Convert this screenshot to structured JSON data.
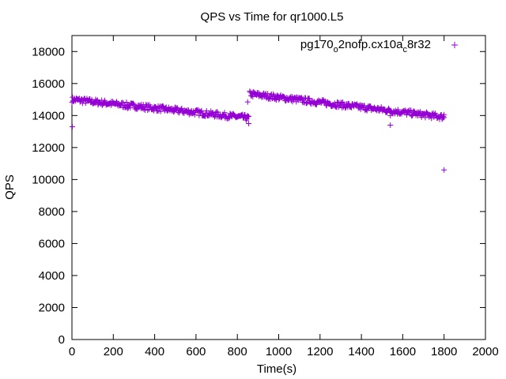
{
  "chart_data": {
    "type": "scatter",
    "title": "QPS vs Time for qr1000.L5",
    "xlabel": "Time(s)",
    "ylabel": "QPS",
    "xlim": [
      0,
      2000
    ],
    "ylim": [
      0,
      19000
    ],
    "x_ticks": [
      "0",
      "200",
      "400",
      "600",
      "800",
      "1000",
      "1200",
      "1400",
      "1600",
      "1800",
      "2000"
    ],
    "y_ticks": [
      "0",
      "2000",
      "4000",
      "6000",
      "8000",
      "10000",
      "12000",
      "14000",
      "16000",
      "18000"
    ],
    "grid": false,
    "legend_position": "top-right",
    "marker": "+",
    "color": "#9400d3",
    "series": [
      {
        "name_parts": [
          "pg170",
          "o",
          "2nofp.cx10a",
          "c",
          "8r32"
        ],
        "segments": [
          {
            "x_range": [
              0,
              855
            ],
            "y_start": 15000,
            "y_end": 13850,
            "spread": 180
          },
          {
            "x_range": [
              860,
              1800
            ],
            "y_start": 15350,
            "y_end": 13900,
            "spread": 180
          }
        ],
        "outliers": [
          [
            2,
            13300
          ],
          [
            5,
            14900
          ],
          [
            270,
            14450
          ],
          [
            850,
            14850
          ],
          [
            855,
            13500
          ],
          [
            1540,
            13400
          ],
          [
            1540,
            14000
          ],
          [
            1800,
            10600
          ],
          [
            1800,
            14050
          ]
        ]
      }
    ]
  }
}
